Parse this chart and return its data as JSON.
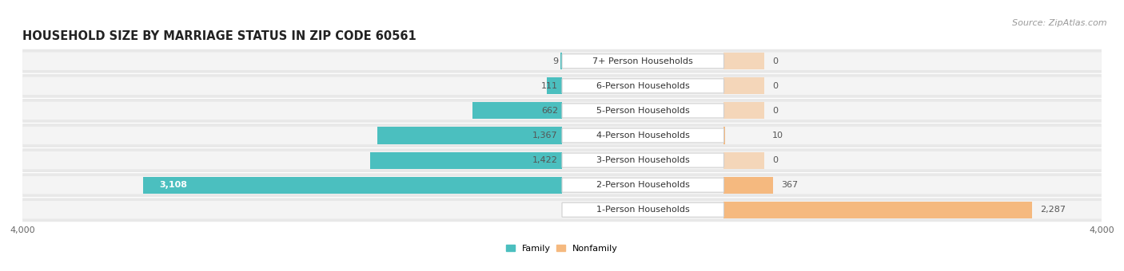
{
  "title": "HOUSEHOLD SIZE BY MARRIAGE STATUS IN ZIP CODE 60561",
  "source": "Source: ZipAtlas.com",
  "categories": [
    "7+ Person Households",
    "6-Person Households",
    "5-Person Households",
    "4-Person Households",
    "3-Person Households",
    "2-Person Households",
    "1-Person Households"
  ],
  "family": [
    9,
    111,
    662,
    1367,
    1422,
    3108,
    0
  ],
  "nonfamily": [
    0,
    0,
    0,
    10,
    0,
    367,
    2287
  ],
  "family_color": "#4bbfbf",
  "nonfamily_color": "#f5b97f",
  "xlim": 4000,
  "row_bg_color": "#ebebeb",
  "row_bg_color2": "#f7f7f7",
  "title_fontsize": 10.5,
  "label_fontsize": 8,
  "tick_fontsize": 8,
  "source_fontsize": 8
}
